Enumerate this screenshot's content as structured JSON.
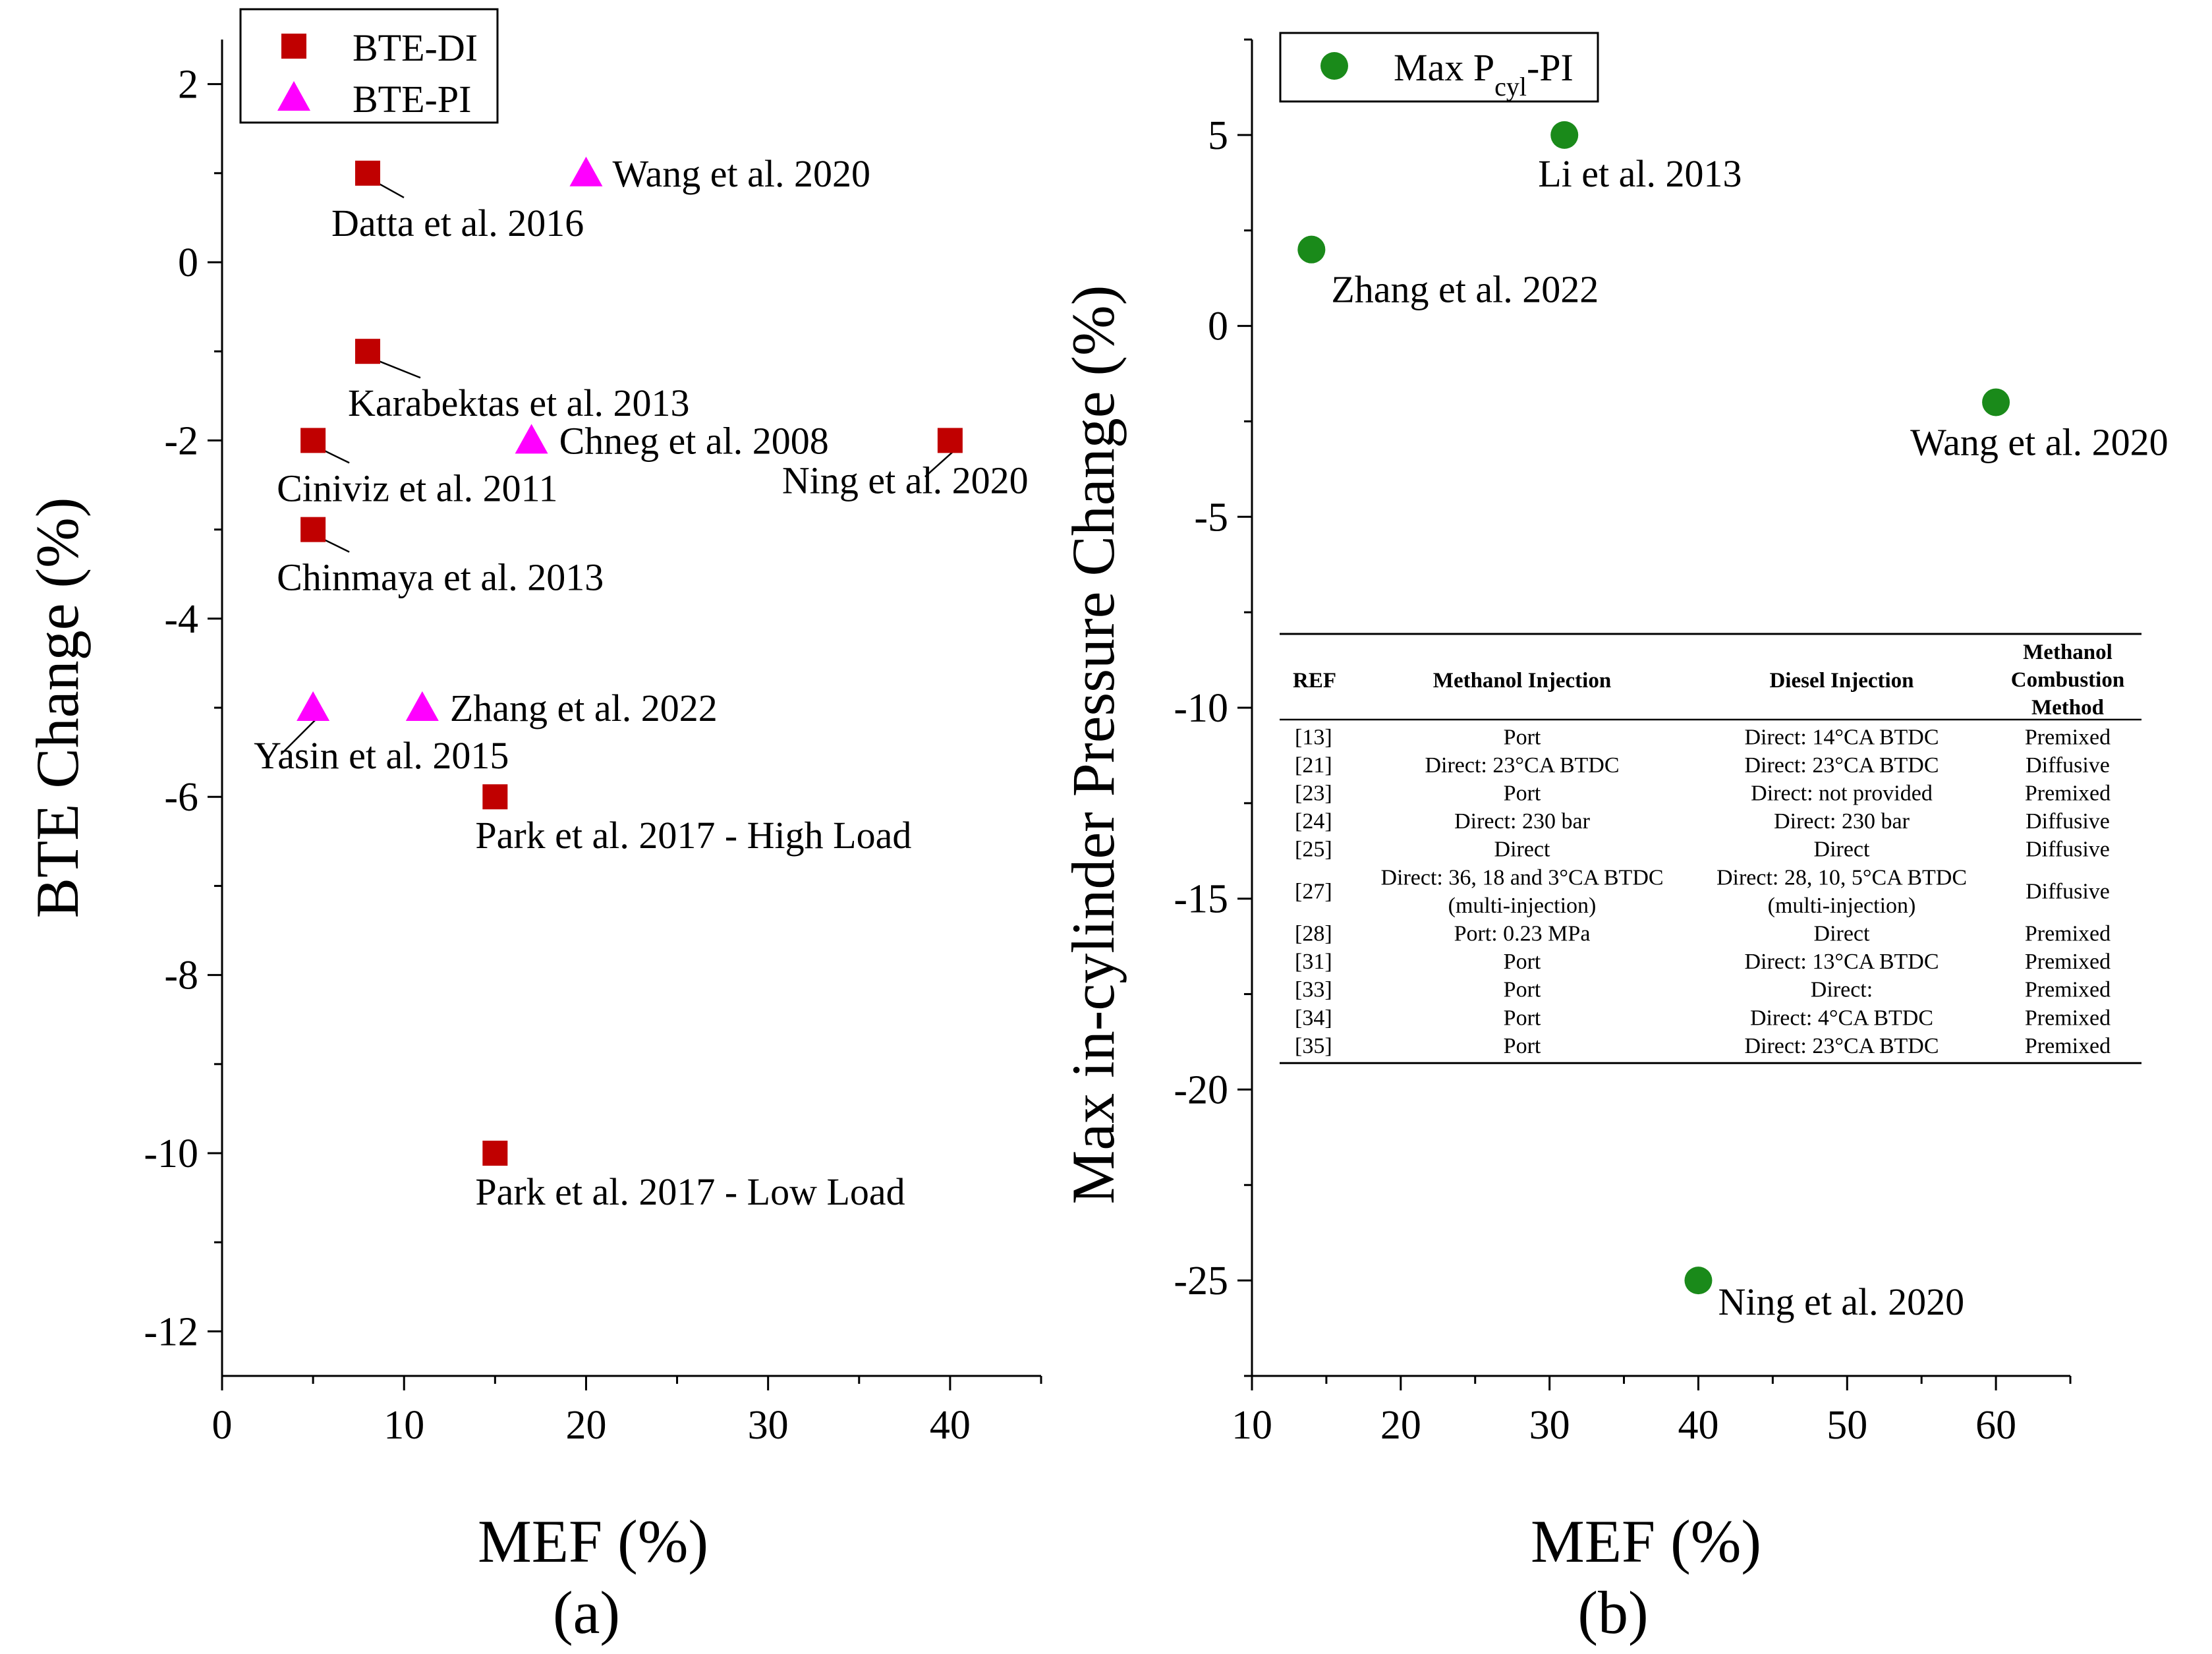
{
  "panel_a_label": "(a)",
  "panel_b_label": "(b)",
  "chart_data": [
    {
      "type": "scatter",
      "xlabel": "MEF (%)",
      "ylabel": "BTE Change (%)",
      "xlim": [
        0,
        45
      ],
      "ylim": [
        -12.5,
        2.5
      ],
      "xticks": [
        0,
        10,
        20,
        30,
        40
      ],
      "yticks": [
        2,
        0,
        -2,
        -4,
        -6,
        -8,
        -10,
        -12
      ],
      "grid": false,
      "legend_position": "top-left",
      "series": [
        {
          "name": "BTE-DI",
          "marker": "square",
          "color": "#c00000",
          "points": [
            {
              "x": 8,
              "y": 1,
              "label": "Datta et al. 2016"
            },
            {
              "x": 8,
              "y": -1,
              "label": "Karabektas et al. 2013"
            },
            {
              "x": 5,
              "y": -2,
              "label": "Ciniviz et al. 2011"
            },
            {
              "x": 5,
              "y": -3,
              "label": "Chinmaya et al. 2013"
            },
            {
              "x": 40,
              "y": -2,
              "label": "Ning et al. 2020"
            },
            {
              "x": 15,
              "y": -6,
              "label": "Park et al. 2017 - High Load"
            },
            {
              "x": 15,
              "y": -10,
              "label": "Park et al. 2017 - Low Load"
            }
          ]
        },
        {
          "name": "BTE-PI",
          "marker": "triangle",
          "color": "#ff00ff",
          "points": [
            {
              "x": 20,
              "y": 1,
              "label": "Wang et al. 2020"
            },
            {
              "x": 17,
              "y": -2,
              "label": "Chneg et al. 2008"
            },
            {
              "x": 5,
              "y": -5,
              "label": "Yasin et al. 2015"
            },
            {
              "x": 11,
              "y": -5,
              "label": "Zhang et al. 2022"
            }
          ]
        }
      ]
    },
    {
      "type": "scatter",
      "xlabel": "MEF (%)",
      "ylabel": "Max in-cylinder Pressure Change (%)",
      "xlim": [
        10,
        65
      ],
      "ylim": [
        -27.5,
        7.5
      ],
      "xticks": [
        10,
        20,
        30,
        40,
        50,
        60
      ],
      "yticks": [
        5,
        0,
        -5,
        -10,
        -15,
        -20,
        -25
      ],
      "grid": false,
      "legend_position": "top-left",
      "series": [
        {
          "name": "Max P",
          "name_sub": "cyl",
          "name_suffix": "-PI",
          "marker": "circle",
          "color": "#1a8a1a",
          "points": [
            {
              "x": 31,
              "y": 5,
              "label": "Li et al. 2013"
            },
            {
              "x": 14,
              "y": 2,
              "label": "Zhang et al. 2022"
            },
            {
              "x": 60,
              "y": -2,
              "label": "Wang et al. 2020"
            },
            {
              "x": 40,
              "y": -25,
              "label": "Ning et al. 2020"
            }
          ]
        }
      ]
    }
  ],
  "table": {
    "headers": [
      "REF",
      "Methanol Injection",
      "Diesel Injection",
      [
        "Methanol",
        "Combustion",
        "Method"
      ]
    ],
    "rows": [
      [
        [
          "[13]"
        ],
        [
          "Port"
        ],
        [
          "Direct: 14°CA BTDC"
        ],
        [
          "Premixed"
        ]
      ],
      [
        [
          "[21]"
        ],
        [
          "Direct: 23°CA BTDC"
        ],
        [
          "Direct: 23°CA BTDC"
        ],
        [
          "Diffusive"
        ]
      ],
      [
        [
          "[23]"
        ],
        [
          "Port"
        ],
        [
          "Direct: not provided"
        ],
        [
          "Premixed"
        ]
      ],
      [
        [
          "[24]"
        ],
        [
          "Direct: 230 bar"
        ],
        [
          "Direct: 230 bar"
        ],
        [
          "Diffusive"
        ]
      ],
      [
        [
          "[25]"
        ],
        [
          "Direct"
        ],
        [
          "Direct"
        ],
        [
          "Diffusive"
        ]
      ],
      [
        [
          "[27]"
        ],
        [
          "Direct: 36, 18 and 3°CA BTDC",
          "(multi-injection)"
        ],
        [
          "Direct: 28, 10, 5°CA BTDC",
          "(multi-injection)"
        ],
        [
          "Diffusive"
        ]
      ],
      [
        [
          "[28]"
        ],
        [
          "Port: 0.23 MPa"
        ],
        [
          "Direct"
        ],
        [
          "Premixed"
        ]
      ],
      [
        [
          "[31]"
        ],
        [
          "Port"
        ],
        [
          "Direct: 13°CA BTDC"
        ],
        [
          "Premixed"
        ]
      ],
      [
        [
          "[33]"
        ],
        [
          "Port"
        ],
        [
          "Direct:"
        ],
        [
          "Premixed"
        ]
      ],
      [
        [
          "[34]"
        ],
        [
          "Port"
        ],
        [
          "Direct: 4°CA BTDC"
        ],
        [
          "Premixed"
        ]
      ],
      [
        [
          "[35]"
        ],
        [
          "Port"
        ],
        [
          "Direct: 23°CA BTDC"
        ],
        [
          "Premixed"
        ]
      ]
    ]
  }
}
